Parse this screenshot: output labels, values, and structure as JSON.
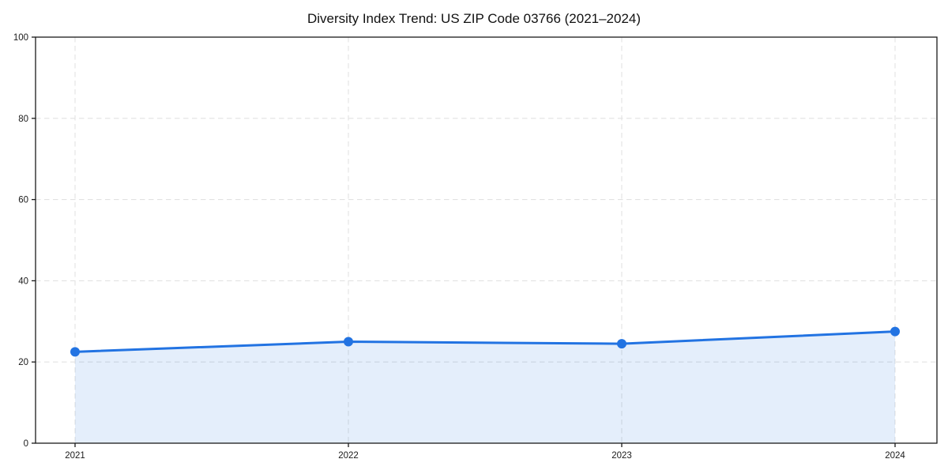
{
  "chart_data": {
    "type": "area",
    "title": "Diversity Index Trend: US ZIP Code 03766 (2021–2024)",
    "x": [
      2021,
      2022,
      2023,
      2024
    ],
    "x_tick_labels": [
      "2021",
      "2022",
      "2023",
      "2024"
    ],
    "series": [
      {
        "name": "Diversity Index",
        "values": [
          22.5,
          25.0,
          24.5,
          27.5
        ]
      }
    ],
    "ylim": [
      0,
      100
    ],
    "yticks": [
      0,
      20,
      40,
      60,
      80,
      100
    ],
    "ytick_labels": [
      "0",
      "20",
      "40",
      "60",
      "80",
      "100"
    ],
    "grid": true,
    "grid_style": "dashed",
    "legend_position": "none",
    "marker": "circle",
    "colors": {
      "line": "#2273e2",
      "marker": "#2273e2",
      "area_fill": "rgba(34,115,226,0.12)",
      "grid": "#e2e2e2",
      "spine": "#1a1a1a",
      "tick_text": "#1a1a1a",
      "title_text": "#111111",
      "background": "#ffffff"
    }
  }
}
